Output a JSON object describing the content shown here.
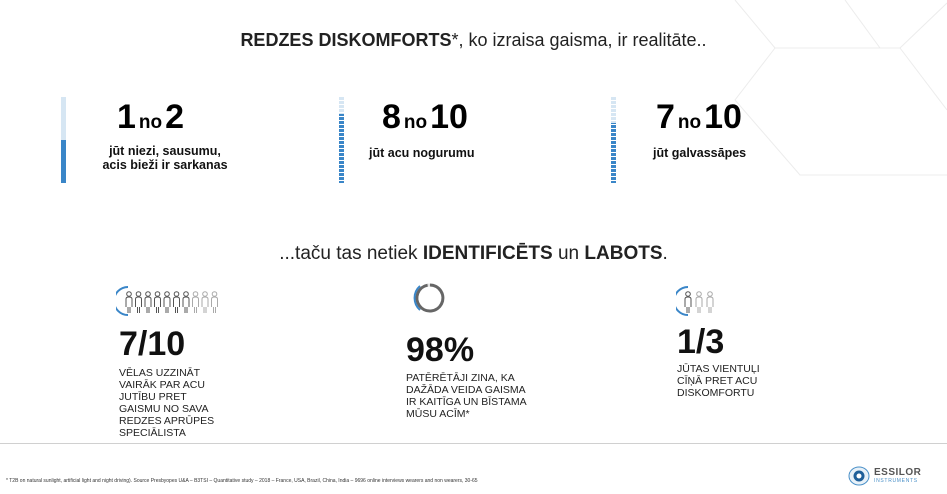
{
  "title": {
    "bold": "REDZES DISKOMFORTS",
    "rest": "*, ko izraisa gaisma, ir realitāte.."
  },
  "stats": [
    {
      "num": "1",
      "no": "no",
      "den": "2",
      "desc": [
        "jūt niezi, sausumu,",
        "acis bieži ir sarkanas"
      ],
      "level": 0.5
    },
    {
      "num": "8",
      "no": "no",
      "den": "10",
      "desc": [
        "jūt acu nogurumu"
      ],
      "level": 0.8
    },
    {
      "num": "7",
      "no": "no",
      "den": "10",
      "desc": [
        "jūt galvassāpes"
      ],
      "level": 0.7
    }
  ],
  "subtitle": {
    "pre": "...taču tas netiek ",
    "bold1": "IDENTIFICĒTS",
    "mid": " un ",
    "bold2": "LABOTS",
    "post": "."
  },
  "facts": [
    {
      "value": "7/10",
      "lines": [
        "VĒLAS UZZINĀT",
        "VAIRĀK PAR ACU",
        "JUTĪBU PRET",
        "GAISMU NO SAVA",
        "REDZES APRŪPES",
        "SPECIĀLISTA"
      ],
      "icon": "ten-people-icon",
      "filled_people": 7,
      "total_people": 10
    },
    {
      "value": "98%",
      "lines": [
        "PATĒRĒTĀJI ZINA, KA",
        "DAŽĀDA VEIDA GAISMA",
        "IR KAITĪGA UN BĪSTAMA",
        "MŪSU ACĪM*"
      ],
      "icon": "progress-ring-icon",
      "percent": 98
    },
    {
      "value": "1/3",
      "lines": [
        "JŪTAS VIENTUĻI",
        "CĪŅĀ PRET ACU",
        "DISKOMFORTU"
      ],
      "icon": "three-people-icon",
      "filled_people": 1,
      "total_people": 3
    }
  ],
  "footnote": "* T2B on natural sunlight, artificial light and night driving). Source Presbyopes U&A – B3TSI – Quantitative study – 2018 – France, USA, Brazil, China, India – 9696 online interviews wearers and non wearers, 30-65",
  "logo": {
    "line1": "ESSILOR",
    "line2": "INSTRUMENTS"
  },
  "colors": {
    "accent": "#3a86c8",
    "light": "#d6e6f3"
  }
}
